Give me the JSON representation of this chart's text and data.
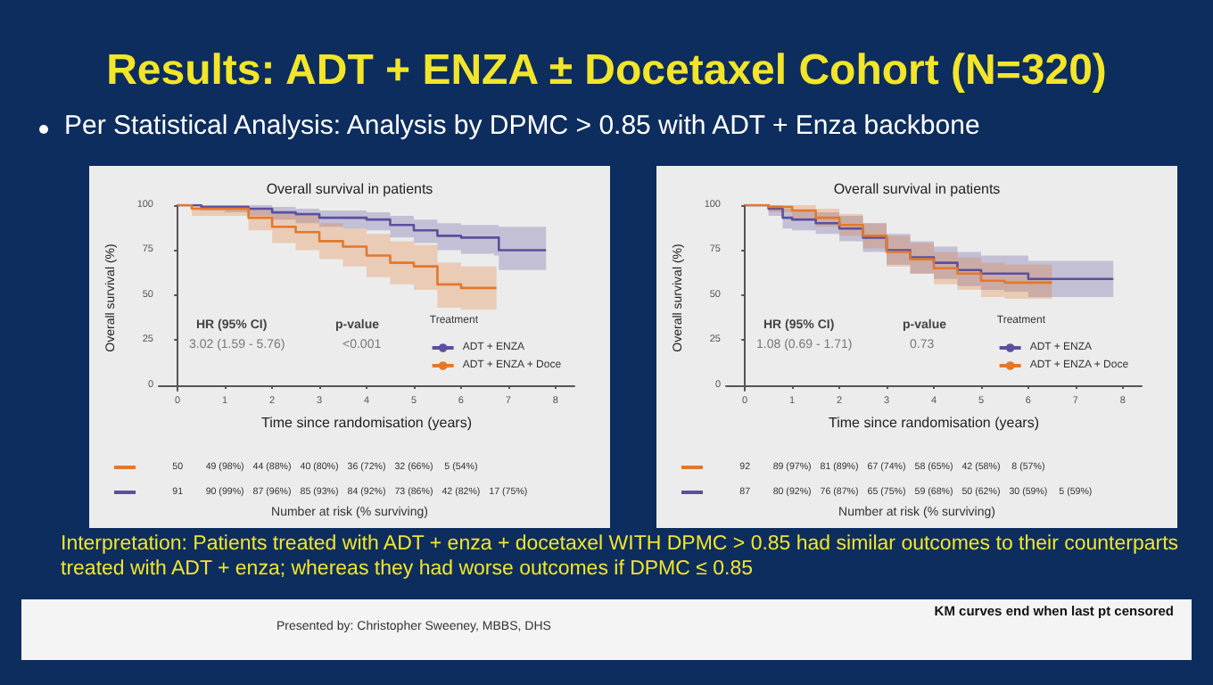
{
  "chart_data": [
    {
      "type": "other",
      "title": "Results: ADT + ENZA ± Docetaxel Cohort (N=320)",
      "subtitle": "Per Statistical Analysis: Analysis by DPMC > 0.85 with ADT + Enza backbone"
    },
    {
      "type": "step",
      "title": "Overall survival in patients",
      "xlabel": "Time since randomisation (years)",
      "ylabel": "Overall survival (%)",
      "legend_title": "Treatment",
      "legend": "bottom right",
      "xlim": [
        -0.4,
        8.4
      ],
      "xticks": [
        0,
        1,
        2,
        3,
        4,
        5,
        6,
        7,
        8
      ],
      "ylim": [
        -3,
        100
      ],
      "yticks": [
        0,
        25,
        50,
        75,
        100
      ],
      "series": [
        {
          "name": "ADT + ENZA",
          "color": "#5b4f9e",
          "x": [
            0,
            0.5,
            1,
            1.5,
            2,
            2.5,
            3,
            3.5,
            4,
            4.5,
            5,
            5.5,
            6,
            6.7,
            6.8,
            7.8
          ],
          "values": [
            100,
            99,
            99,
            98,
            96,
            95,
            93,
            93,
            92,
            89,
            86,
            83,
            82,
            82,
            75,
            75
          ],
          "lower": [
            100,
            97,
            96,
            94,
            92,
            90,
            88,
            87,
            86,
            82,
            79,
            75,
            73,
            72,
            64,
            64
          ],
          "upper": [
            100,
            100,
            100,
            100,
            99,
            98,
            97,
            97,
            96,
            94,
            92,
            90,
            89,
            89,
            88,
            88
          ]
        },
        {
          "name": "ADT + ENZA + Doce",
          "color": "#e3782b",
          "x": [
            0,
            0.3,
            0.6,
            1,
            1.5,
            2,
            2.5,
            3,
            3.5,
            4,
            4.5,
            5,
            5.5,
            6,
            6.75
          ],
          "values": [
            100,
            98,
            98,
            98,
            93,
            88,
            85,
            80,
            77,
            72,
            68,
            66,
            56,
            54,
            54
          ],
          "lower": [
            100,
            94,
            94,
            94,
            86,
            79,
            75,
            70,
            66,
            60,
            56,
            53,
            43,
            42,
            42
          ],
          "upper": [
            100,
            100,
            100,
            100,
            98,
            96,
            94,
            90,
            87,
            84,
            80,
            78,
            68,
            66,
            66
          ]
        }
      ],
      "annotations": [
        "HR (95% CI)",
        "3.02 (1.59 - 5.76)",
        "p-value",
        "<0.001",
        "50  49 (98%)  44 (88%)  40 (80%)  36 (72%)  32 (66%)  5 (54%)",
        "91  90 (99%)  87 (96%)  85 (93%)  84 (92%)  73 (86%)  42 (82%)  17 (75%)",
        "Number at risk (% surviving)"
      ]
    },
    {
      "type": "step",
      "title": "Overall survival in patients",
      "xlabel": "Time since randomisation (years)",
      "ylabel": "Overall survival (%)",
      "legend_title": "Treatment",
      "legend": "bottom right",
      "xlim": [
        -0.4,
        8.4
      ],
      "xticks": [
        0,
        1,
        2,
        3,
        4,
        5,
        6,
        7,
        8
      ],
      "ylim": [
        -3,
        100
      ],
      "yticks": [
        0,
        25,
        50,
        75,
        100
      ],
      "series": [
        {
          "name": "ADT + ENZA",
          "color": "#5b4f9e",
          "x": [
            0,
            0.5,
            0.8,
            1,
            1.5,
            2,
            2.5,
            3,
            3.5,
            4,
            4.5,
            5,
            5.5,
            6,
            7,
            7.8
          ],
          "values": [
            100,
            98,
            93,
            92,
            90,
            87,
            82,
            75,
            71,
            68,
            64,
            62,
            62,
            59,
            59,
            59
          ],
          "lower": [
            100,
            94,
            87,
            86,
            84,
            80,
            74,
            67,
            62,
            59,
            55,
            53,
            52,
            49,
            49,
            49
          ],
          "upper": [
            100,
            100,
            98,
            97,
            96,
            94,
            90,
            84,
            80,
            77,
            74,
            72,
            72,
            69,
            69,
            69
          ]
        },
        {
          "name": "ADT + ENZA + Doce",
          "color": "#e3782b",
          "x": [
            0,
            0.5,
            1,
            1.5,
            2,
            2.5,
            3,
            3.5,
            4,
            4.5,
            5,
            5.5,
            6,
            6.5
          ],
          "values": [
            100,
            99,
            97,
            93,
            89,
            83,
            74,
            70,
            65,
            62,
            58,
            57,
            57,
            57
          ],
          "lower": [
            100,
            96,
            93,
            88,
            83,
            76,
            66,
            62,
            56,
            53,
            49,
            48,
            48,
            48
          ],
          "upper": [
            100,
            100,
            100,
            98,
            95,
            90,
            83,
            79,
            74,
            71,
            68,
            67,
            67,
            67
          ]
        }
      ],
      "annotations": [
        "HR (95% CI)",
        "1.08 (0.69 - 1.71)",
        "p-value",
        "0.73",
        "92  89 (97%)  81 (89%)  67 (74%)  58 (65%)  42 (58%)  8 (57%)",
        "87  80 (92%)  76 (87%)  65 (75%)  59 (68%)  50 (62%)  30 (59%)  5 (59%)",
        "Number at risk (% surviving)"
      ]
    },
    {
      "type": "other",
      "annotations": [
        "Interpretation: Patients treated with ADT + enza + docetaxel  WITH DPMC > 0.85 had similar outcomes to their counterparts treated with ADT + enza; whereas they had worse outcomes if DPMC ≤ 0.85",
        "Presented by: Christopher Sweeney, MBBS, DHS",
        "KM curves end when last pt censored"
      ]
    }
  ]
}
